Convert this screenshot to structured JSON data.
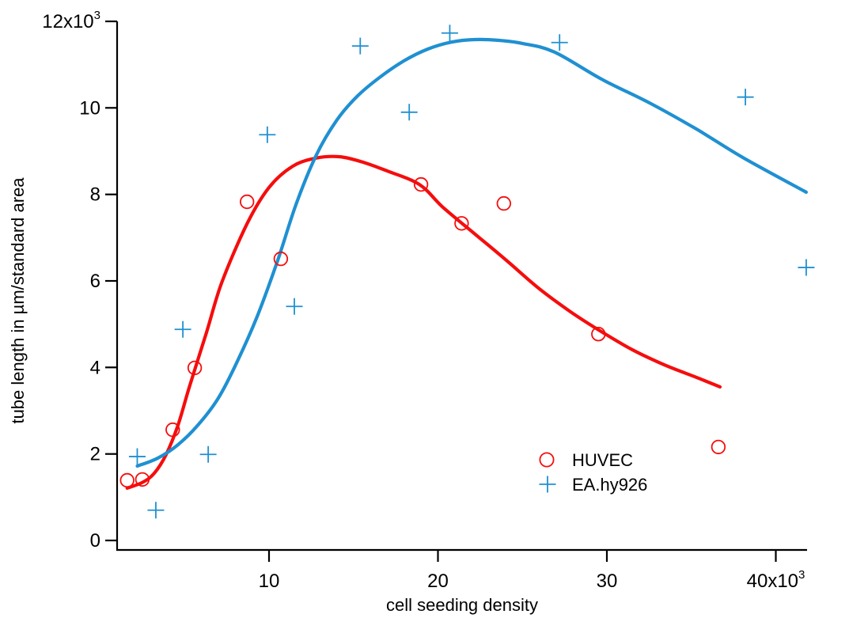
{
  "chart_data": {
    "type": "scatter",
    "title": "",
    "xlabel": "cell seeding density",
    "ylabel": "tube length in µm/standard area",
    "grid": false,
    "legend_position": "inside-right-bottom",
    "x_axis": {
      "range": [
        1.0,
        41.9
      ],
      "unit_note": "values in thousands (x10^3)",
      "ticks": [
        {
          "v": 10,
          "t": "10"
        },
        {
          "v": 20,
          "t": "20"
        },
        {
          "v": 30,
          "t": "30"
        },
        {
          "v": 40,
          "t": "40x10",
          "sup": "3"
        }
      ]
    },
    "y_axis": {
      "range": [
        0,
        12000
      ],
      "ticks": [
        {
          "v": 0,
          "t": "0"
        },
        {
          "v": 2000,
          "t": "2"
        },
        {
          "v": 4000,
          "t": "4"
        },
        {
          "v": 6000,
          "t": "6"
        },
        {
          "v": 8000,
          "t": "8"
        },
        {
          "v": 10000,
          "t": "10"
        },
        {
          "v": 12000,
          "t": "12x10",
          "sup": "3"
        }
      ]
    },
    "series": [
      {
        "name": "HUVEC",
        "marker": "circle",
        "color": "#f50d0d",
        "points": [
          [
            1.6,
            1390
          ],
          [
            2.5,
            1410
          ],
          [
            4.3,
            2560
          ],
          [
            5.6,
            3990
          ],
          [
            8.7,
            7830
          ],
          [
            10.7,
            6510
          ],
          [
            19.0,
            8230
          ],
          [
            21.4,
            7330
          ],
          [
            23.9,
            7790
          ],
          [
            29.5,
            4770
          ],
          [
            36.6,
            2160
          ]
        ]
      },
      {
        "name": "EA.hy926",
        "marker": "plus",
        "color": "#1f90d2",
        "points": [
          [
            2.2,
            1940
          ],
          [
            3.3,
            700
          ],
          [
            4.9,
            4880
          ],
          [
            6.4,
            1990
          ],
          [
            9.9,
            9380
          ],
          [
            11.5,
            5410
          ],
          [
            15.4,
            11430
          ],
          [
            18.3,
            9900
          ],
          [
            20.7,
            11730
          ],
          [
            27.2,
            11510
          ],
          [
            38.2,
            10250
          ],
          [
            41.8,
            6310
          ]
        ]
      }
    ],
    "fit_curves": [
      {
        "series": "HUVEC",
        "color": "#f50d0d",
        "peak": [
          14.2,
          8870
        ],
        "points": [
          [
            1.6,
            1210
          ],
          [
            2.5,
            1340
          ],
          [
            3.2,
            1550
          ],
          [
            3.9,
            1980
          ],
          [
            4.6,
            2650
          ],
          [
            5.3,
            3570
          ],
          [
            6.3,
            4810
          ],
          [
            7.2,
            5960
          ],
          [
            8.7,
            7320
          ],
          [
            10.0,
            8160
          ],
          [
            11.4,
            8650
          ],
          [
            12.8,
            8840
          ],
          [
            14.2,
            8870
          ],
          [
            15.6,
            8740
          ],
          [
            17.0,
            8540
          ],
          [
            18.9,
            8230
          ],
          [
            20.3,
            7700
          ],
          [
            22.2,
            7080
          ],
          [
            24.1,
            6460
          ],
          [
            25.9,
            5850
          ],
          [
            27.8,
            5300
          ],
          [
            29.5,
            4870
          ],
          [
            31.5,
            4410
          ],
          [
            33.4,
            4060
          ],
          [
            35.3,
            3770
          ],
          [
            36.7,
            3550
          ]
        ]
      },
      {
        "series": "EA.hy926",
        "color": "#1f90d2",
        "peak": [
          22.2,
          11580
        ],
        "points": [
          [
            2.2,
            1720
          ],
          [
            3.4,
            1900
          ],
          [
            4.6,
            2210
          ],
          [
            5.8,
            2670
          ],
          [
            7.0,
            3290
          ],
          [
            8.1,
            4120
          ],
          [
            9.3,
            5180
          ],
          [
            10.5,
            6460
          ],
          [
            11.6,
            7770
          ],
          [
            12.8,
            8910
          ],
          [
            14.0,
            9710
          ],
          [
            15.2,
            10260
          ],
          [
            16.6,
            10720
          ],
          [
            18.0,
            11090
          ],
          [
            19.4,
            11360
          ],
          [
            20.8,
            11520
          ],
          [
            22.2,
            11580
          ],
          [
            23.6,
            11560
          ],
          [
            25.0,
            11490
          ],
          [
            26.9,
            11290
          ],
          [
            29.7,
            10660
          ],
          [
            32.5,
            10120
          ],
          [
            35.3,
            9510
          ],
          [
            38.1,
            8840
          ],
          [
            41.8,
            8050
          ]
        ]
      }
    ]
  },
  "legend": {
    "items": [
      {
        "label": "HUVEC",
        "marker": "circle",
        "color": "#f50d0d"
      },
      {
        "label": "EA.hy926",
        "marker": "plus",
        "color": "#1f90d2"
      }
    ]
  },
  "colors": {
    "axis": "#000000",
    "background": "#ffffff",
    "huvec": "#f50d0d",
    "eahy926": "#1f90d2"
  }
}
